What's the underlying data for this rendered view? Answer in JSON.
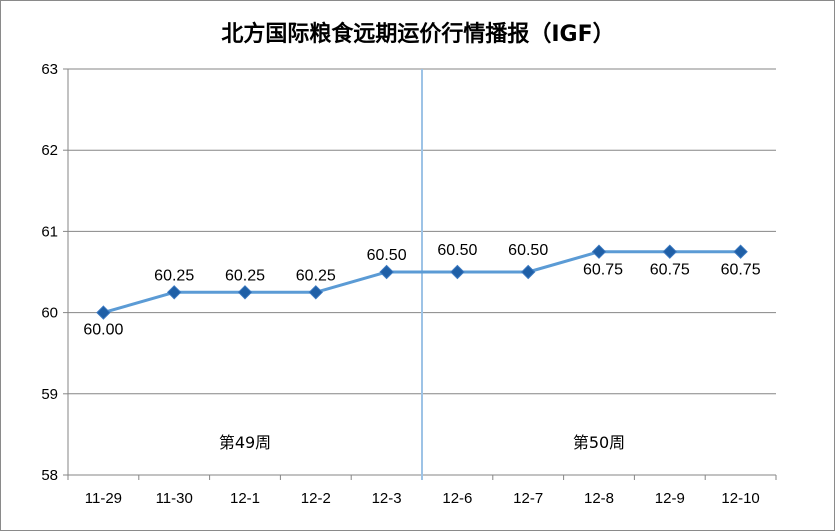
{
  "chart_data": {
    "type": "line",
    "title": "北方国际粮食远期运价行情播报（IGF）",
    "xlabel": "",
    "ylabel": "",
    "categories": [
      "11-29",
      "11-30",
      "12-1",
      "12-2",
      "12-3",
      "12-6",
      "12-7",
      "12-8",
      "12-9",
      "12-10"
    ],
    "series": [
      {
        "values": [
          60.0,
          60.25,
          60.25,
          60.25,
          60.5,
          60.5,
          60.5,
          60.75,
          60.75,
          60.75
        ],
        "labels": [
          "60.00",
          "60.25",
          "60.25",
          "60.25",
          "60.50",
          "60.50",
          "60.50",
          "60.75",
          "60.75",
          "60.75"
        ],
        "color": "#5b9bd5",
        "marker_color": "#1f5fa6"
      }
    ],
    "ylim": [
      58,
      63
    ],
    "yticks": [
      "58",
      "59",
      "60",
      "61",
      "62",
      "63"
    ],
    "grid": "horizontal",
    "week_labels": [
      "第49周",
      "第50周"
    ],
    "divider_after_index": 4,
    "divider_color": "#9dc3e6"
  }
}
